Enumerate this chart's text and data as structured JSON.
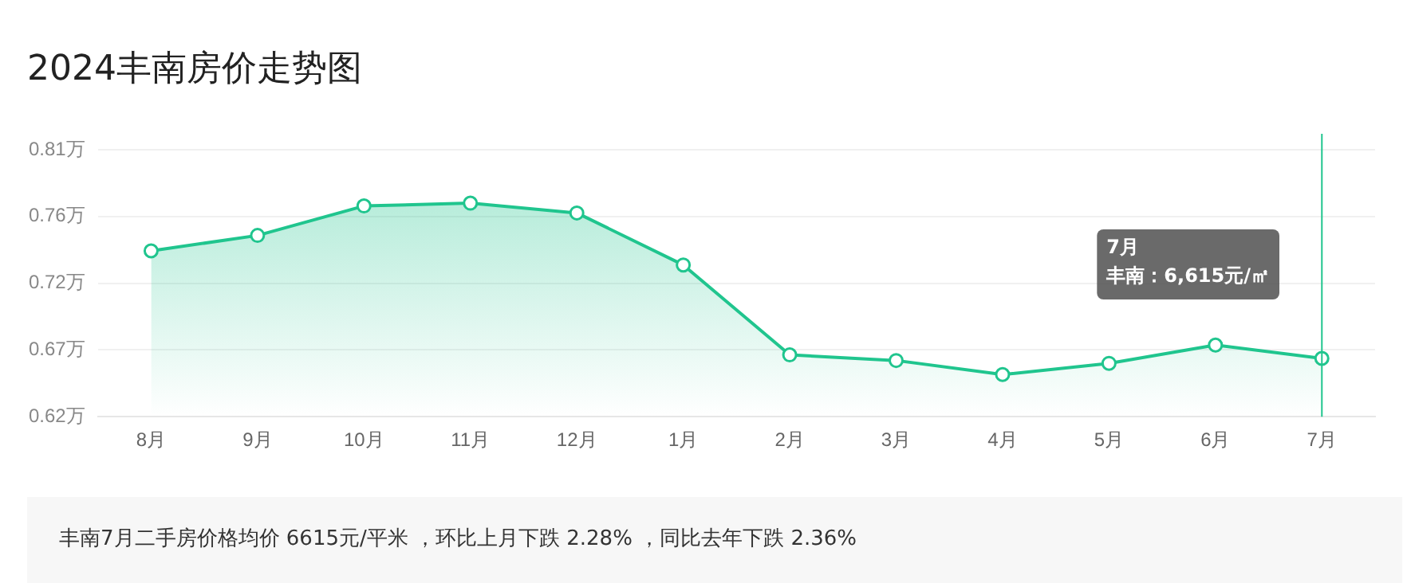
{
  "chart_data": {
    "type": "area",
    "title": "2024丰南房价走势图",
    "categories": [
      "8月",
      "9月",
      "10月",
      "11月",
      "12月",
      "1月",
      "2月",
      "3月",
      "4月",
      "5月",
      "6月",
      "7月"
    ],
    "series": [
      {
        "color": "#20c58e",
        "values": [
          0.738,
          0.749,
          0.77,
          0.772,
          0.765,
          0.728,
          0.664,
          0.66,
          0.65,
          0.658,
          0.671,
          0.6615
        ]
      }
    ],
    "ylim": [
      0.62,
      0.81
    ],
    "yticks": [
      {
        "value": 0.62,
        "label": "0.62万"
      },
      {
        "value": 0.6675,
        "label": "0.67万"
      },
      {
        "value": 0.715,
        "label": "0.72万"
      },
      {
        "value": 0.7625,
        "label": "0.76万"
      },
      {
        "value": 0.81,
        "label": "0.81万"
      }
    ],
    "grid": "y",
    "legend": false,
    "marker": "circle",
    "line_style": "solid",
    "ref_lines": [
      {
        "axis": "x",
        "value": "7月",
        "color": "#20c58e"
      }
    ],
    "annotations": [
      "7月",
      "丰南：6,615元/㎡",
      "丰南7月二手房价格均价 6615元/平米 ，环比上月下跌 2.28% ，同比去年下跌 2.36%"
    ]
  }
}
